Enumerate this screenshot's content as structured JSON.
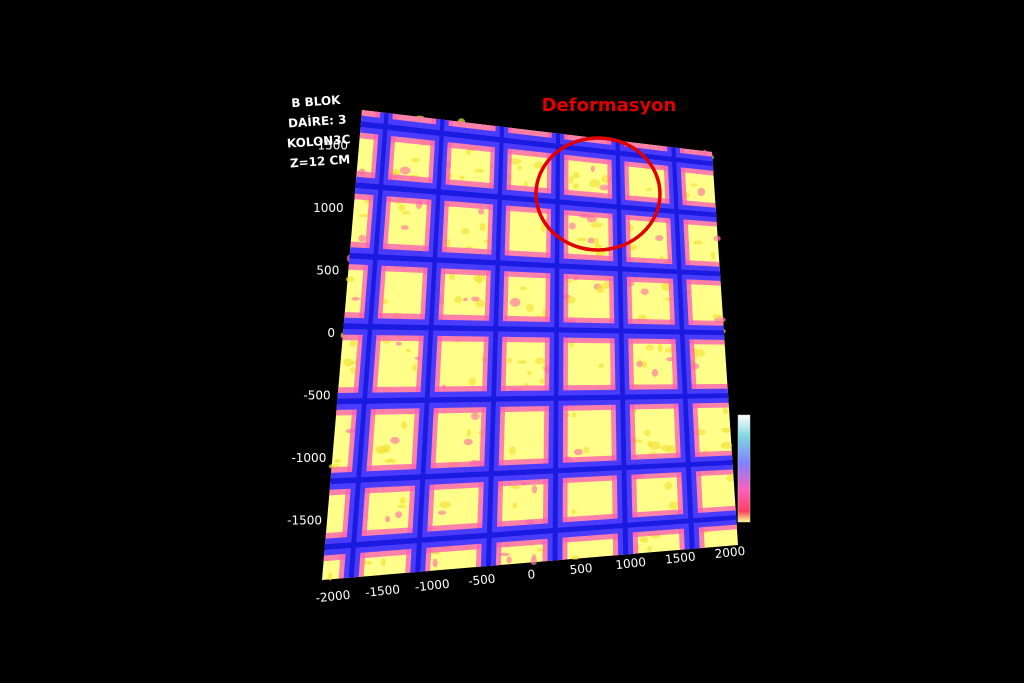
{
  "annotation": {
    "label_lines": [
      "B BLOK",
      "DAİRE: 3",
      "KOLON3C",
      "Z=12 CM"
    ],
    "callout": "Deformasyon"
  },
  "axes": {
    "y_ticks": [
      1500,
      1000,
      500,
      0,
      -500,
      -1000,
      -1500
    ],
    "x_ticks": [
      -2000,
      -1500,
      -1000,
      -500,
      0,
      500,
      1000,
      1500,
      2000
    ]
  }
}
